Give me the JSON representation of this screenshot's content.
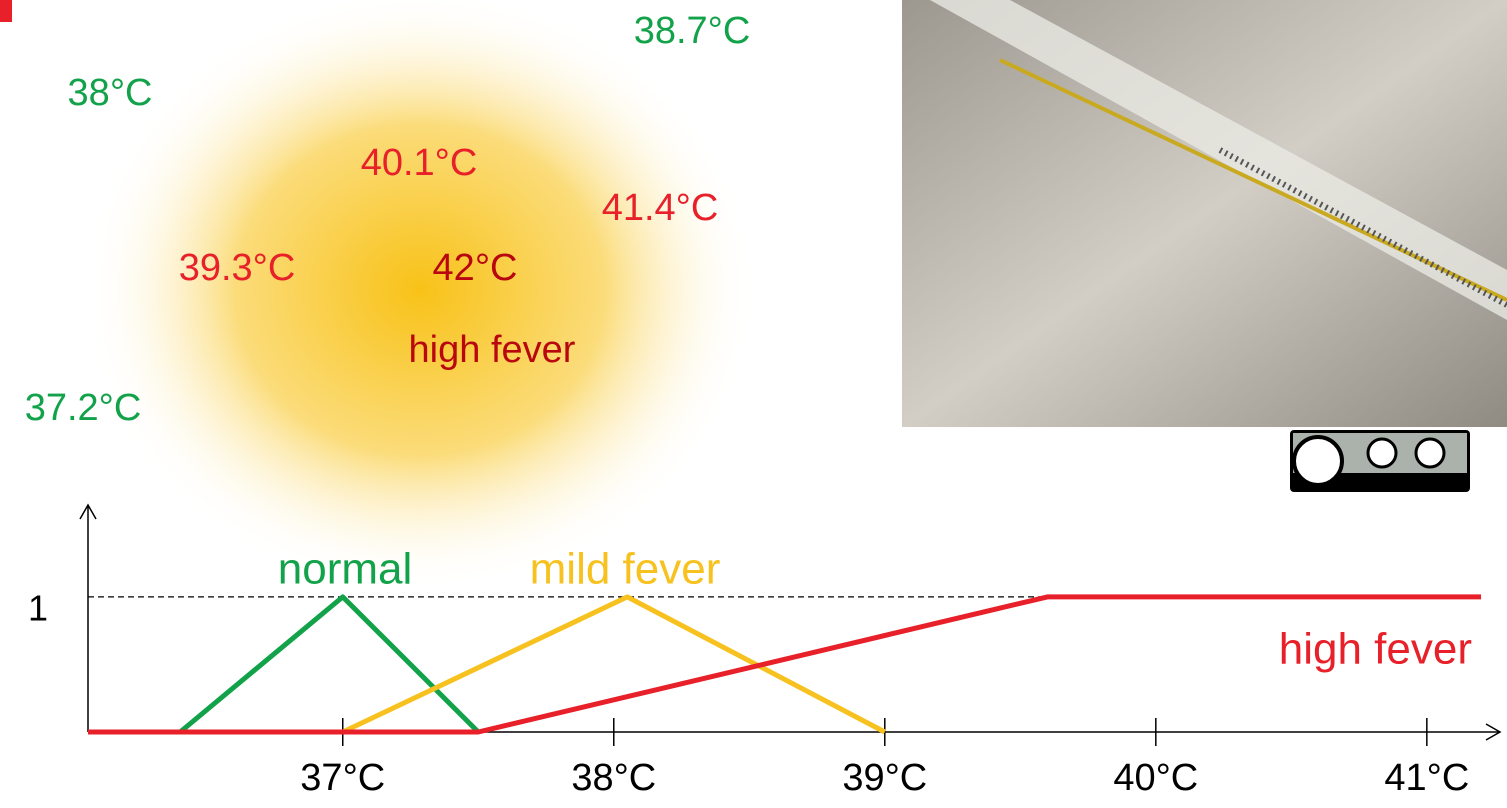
{
  "chart_data": {
    "type": "line",
    "series": [
      {
        "name": "normal",
        "color": "#12a24a",
        "x": [
          36.4,
          37,
          37.5
        ],
        "values": [
          0,
          1,
          0
        ]
      },
      {
        "name": "mild fever",
        "color": "#f7c21f",
        "x": [
          37,
          38.05,
          39
        ],
        "values": [
          0,
          1,
          0
        ]
      },
      {
        "name": "high fever",
        "color": "#e8202a",
        "x": [
          36.06,
          37.5,
          39.6,
          41.2
        ],
        "values": [
          0,
          0,
          1,
          1
        ]
      }
    ],
    "xlim": [
      36.06,
      41.27
    ],
    "xticks": [
      {
        "value": 37,
        "label": "37°C"
      },
      {
        "value": 38,
        "label": "38°C"
      },
      {
        "value": 39,
        "label": "39°C"
      },
      {
        "value": 40,
        "label": "40°C"
      },
      {
        "value": 41,
        "label": "41°C"
      }
    ],
    "ylim": [
      0,
      1.68
    ],
    "yticks": [
      1
    ],
    "annotations": [
      {
        "text": "38.7°C",
        "color": "#12a24a"
      },
      {
        "text": "38°C",
        "color": "#12a24a"
      },
      {
        "text": "40.1°C",
        "color": "#e8202a"
      },
      {
        "text": "41.4°C",
        "color": "#e8202a"
      },
      {
        "text": "39.3°C",
        "color": "#e8202a"
      },
      {
        "text": "42°C",
        "color": "#b8070f"
      },
      {
        "text": "high fever",
        "color": "#b8070f"
      },
      {
        "text": "37.2°C",
        "color": "#12a24a"
      }
    ]
  }
}
